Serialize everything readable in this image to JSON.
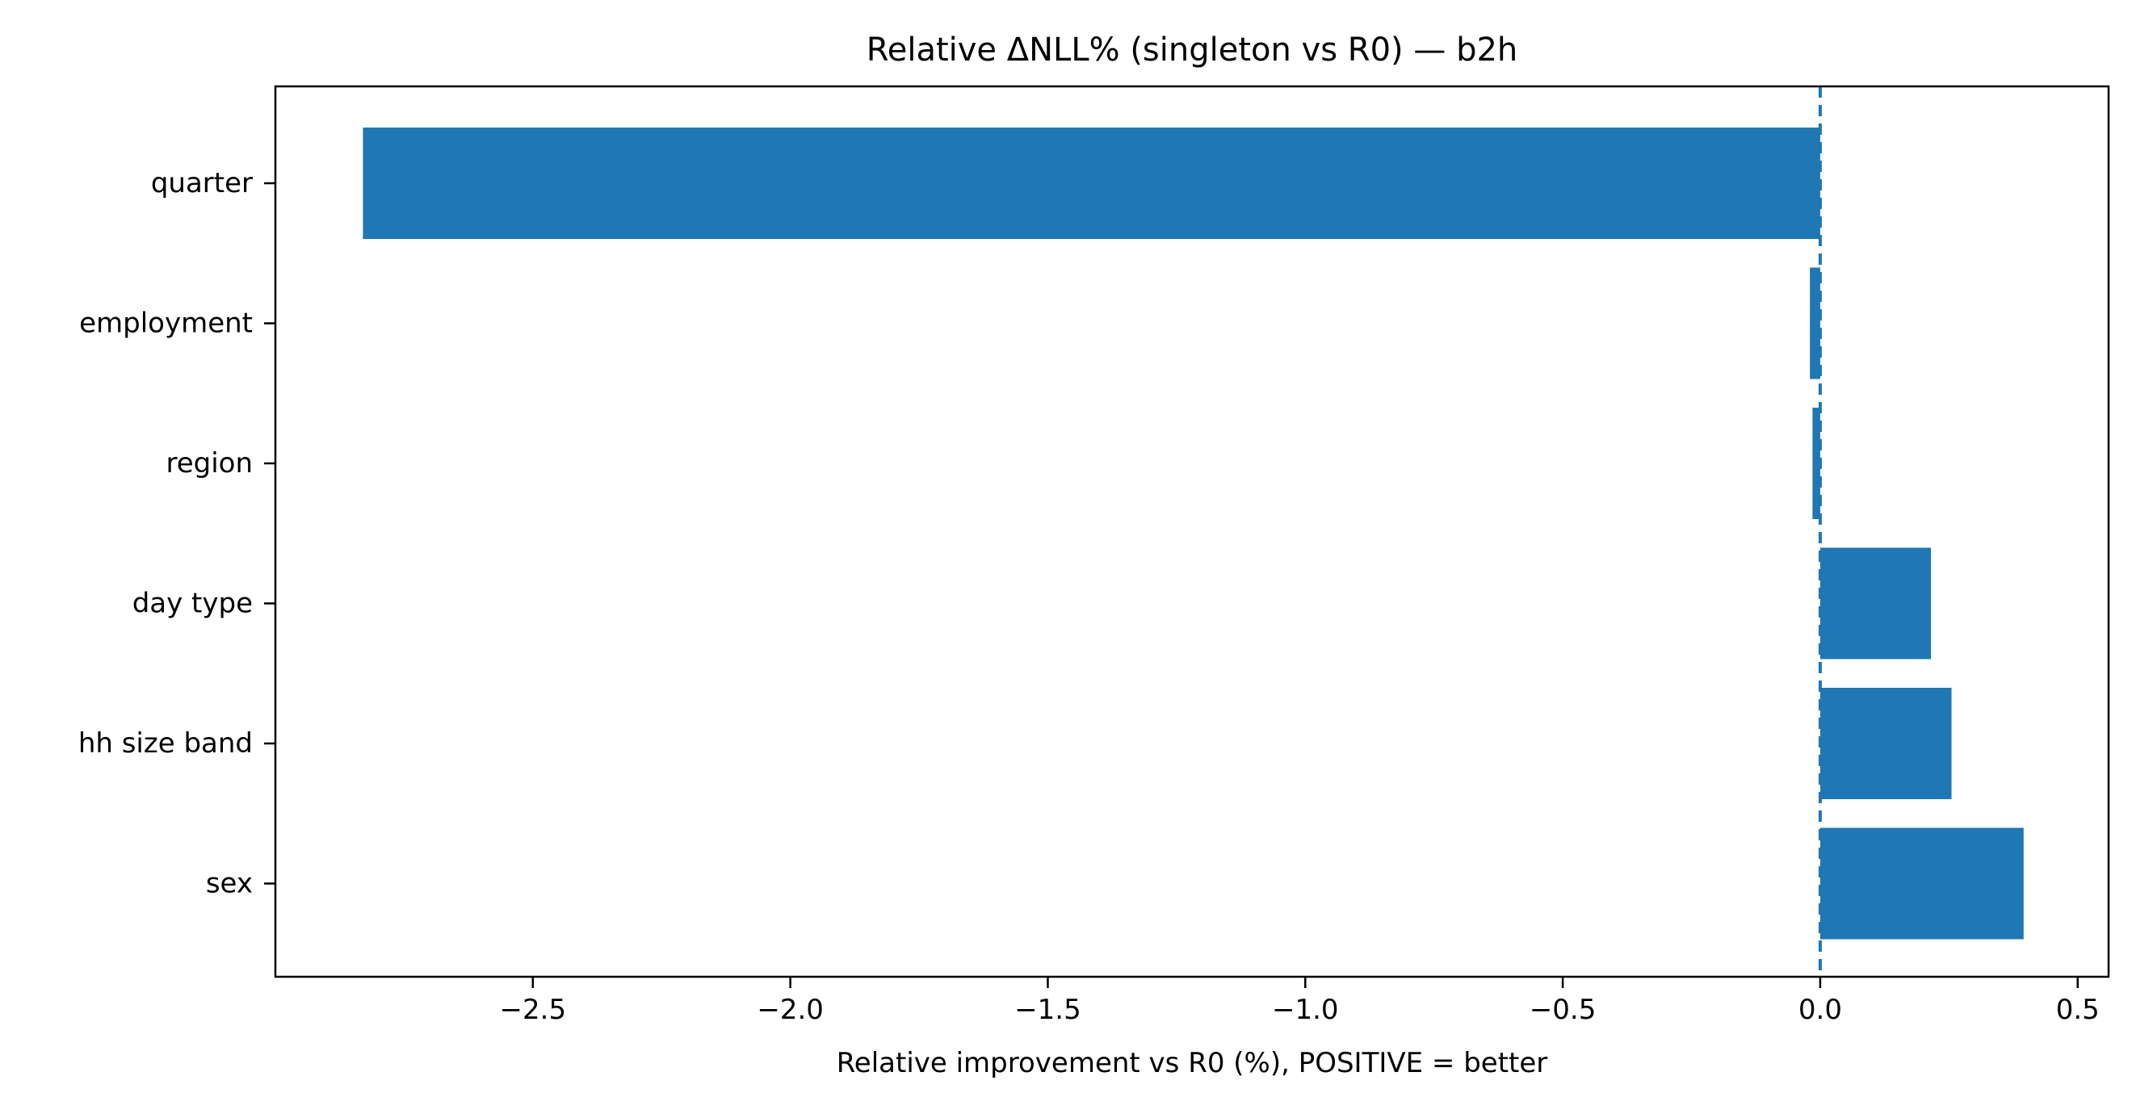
{
  "chart_data": {
    "type": "bar",
    "orientation": "horizontal",
    "title": "Relative ΔNLL% (singleton vs R0) — b2h",
    "xlabel": "Relative improvement vs R0 (%), POSITIVE = better",
    "ylabel": "",
    "categories": [
      "quarter",
      "employment",
      "region",
      "day type",
      "hh size band",
      "sex"
    ],
    "values": [
      -2.83,
      -0.02,
      -0.015,
      0.215,
      0.255,
      0.395
    ],
    "xlim": [
      -3.0,
      0.56
    ],
    "xticks": [
      -2.5,
      -2.0,
      -1.5,
      -1.0,
      -0.5,
      0.0,
      0.5
    ],
    "xtick_labels": [
      "−2.5",
      "−2.0",
      "−1.5",
      "−1.0",
      "−0.5",
      "0.0",
      "0.5"
    ],
    "reference_line": {
      "x": 0.0,
      "style": "dashed"
    },
    "grid": false,
    "bar_color": "#1f77b4",
    "reference_line_color": "#1f77b4"
  }
}
